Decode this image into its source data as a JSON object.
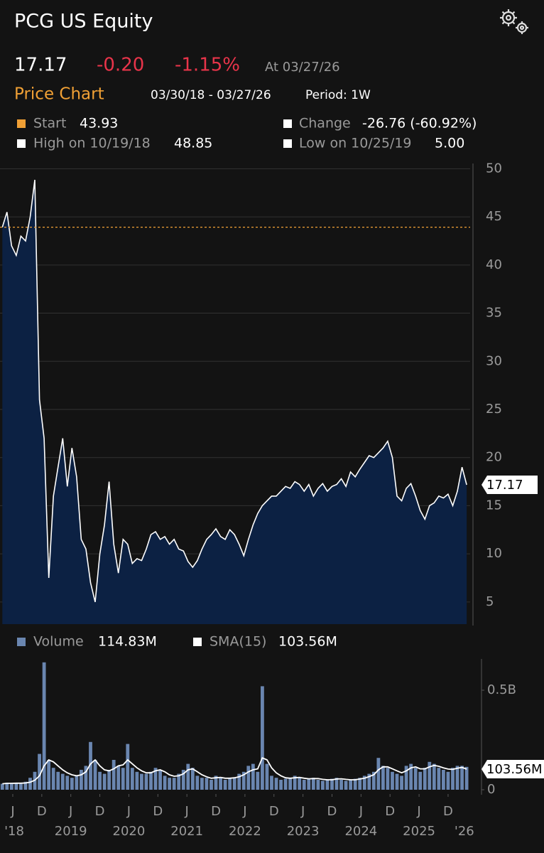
{
  "header": {
    "title": "PCG US Equity",
    "last": "17.17",
    "change": "-0.20",
    "change_pct": "-1.15%",
    "as_of": "At 03/27/26",
    "section": "Price Chart",
    "range": "03/30/18 - 03/27/26",
    "period": "Period: 1W"
  },
  "stats": {
    "start_label": "Start",
    "start_value": 43.93,
    "change_label": "Change",
    "change_value": "-26.76 (-60.92%)",
    "high_label": "High on 10/19/18",
    "high_value": "48.85",
    "low_label": "Low on 10/25/19",
    "low_value": "5.00"
  },
  "chart_data": [
    {
      "type": "area",
      "color": "#ffffff",
      "fill": "#0c2143",
      "start_color": "#f0a035",
      "x": [
        2018.24,
        2018.32,
        2018.4,
        2018.48,
        2018.56,
        2018.64,
        2018.72,
        2018.8,
        2018.88,
        2018.96,
        2019.04,
        2019.12,
        2019.2,
        2019.28,
        2019.36,
        2019.44,
        2019.52,
        2019.6,
        2019.68,
        2019.76,
        2019.84,
        2019.92,
        2020.0,
        2020.08,
        2020.16,
        2020.24,
        2020.32,
        2020.4,
        2020.48,
        2020.56,
        2020.64,
        2020.72,
        2020.8,
        2020.88,
        2020.96,
        2021.04,
        2021.12,
        2021.2,
        2021.28,
        2021.36,
        2021.44,
        2021.52,
        2021.6,
        2021.68,
        2021.76,
        2021.84,
        2021.92,
        2022.0,
        2022.08,
        2022.16,
        2022.24,
        2022.32,
        2022.4,
        2022.48,
        2022.56,
        2022.64,
        2022.72,
        2022.8,
        2022.88,
        2022.96,
        2023.04,
        2023.12,
        2023.2,
        2023.28,
        2023.36,
        2023.44,
        2023.52,
        2023.6,
        2023.68,
        2023.76,
        2023.84,
        2023.92,
        2024.0,
        2024.08,
        2024.16,
        2024.24,
        2024.32,
        2024.4,
        2024.48,
        2024.56,
        2024.64,
        2024.72,
        2024.8,
        2024.88,
        2024.96,
        2025.04,
        2025.12,
        2025.2,
        2025.28,
        2025.36,
        2025.44,
        2025.52,
        2025.6,
        2025.68,
        2025.76,
        2025.84,
        2025.92,
        2026.0,
        2026.08,
        2026.16,
        2026.24
      ],
      "values": [
        43.93,
        45.5,
        42,
        41,
        43,
        42.5,
        45,
        48.85,
        26,
        22,
        7.5,
        16,
        19,
        22,
        17,
        21,
        18,
        11.5,
        10.5,
        7,
        5.0,
        10,
        13,
        17.5,
        11,
        8,
        11.5,
        11,
        9,
        9.5,
        9.3,
        10.5,
        12,
        12.3,
        11.5,
        11.8,
        11,
        11.5,
        10.5,
        10.3,
        9.2,
        8.6,
        9.3,
        10.5,
        11.5,
        12,
        12.6,
        11.8,
        11.5,
        12.5,
        12,
        11,
        9.8,
        11.5,
        13,
        14.2,
        15,
        15.5,
        16,
        16,
        16.5,
        17,
        16.8,
        17.5,
        17.2,
        16.5,
        17.2,
        16,
        16.8,
        17.3,
        16.5,
        17,
        17.2,
        17.8,
        17,
        18.5,
        18,
        18.8,
        19.5,
        20.2,
        20,
        20.5,
        21,
        21.7,
        20,
        16,
        15.5,
        16.8,
        17.3,
        16,
        14.5,
        13.6,
        15,
        15.3,
        16,
        15.8,
        16.2,
        15,
        16.5,
        19,
        17.17
      ],
      "xlim": [
        2018.2,
        2026.3
      ],
      "ylim": [
        2.7,
        50.4
      ],
      "yticks": [
        5,
        10,
        15,
        20,
        25,
        30,
        35,
        40,
        45,
        50
      ],
      "grid": true
    },
    {
      "type": "bar",
      "legend_values": [
        "114.83M",
        "103.56M"
      ],
      "x": [
        2018.24,
        2018.32,
        2018.4,
        2018.48,
        2018.56,
        2018.64,
        2018.72,
        2018.8,
        2018.88,
        2018.96,
        2019.04,
        2019.12,
        2019.2,
        2019.28,
        2019.36,
        2019.44,
        2019.52,
        2019.6,
        2019.68,
        2019.76,
        2019.84,
        2019.92,
        2020.0,
        2020.08,
        2020.16,
        2020.24,
        2020.32,
        2020.4,
        2020.48,
        2020.56,
        2020.64,
        2020.72,
        2020.8,
        2020.88,
        2020.96,
        2021.04,
        2021.12,
        2021.2,
        2021.28,
        2021.36,
        2021.44,
        2021.52,
        2021.6,
        2021.68,
        2021.76,
        2021.84,
        2021.92,
        2022.0,
        2022.08,
        2022.16,
        2022.24,
        2022.32,
        2022.4,
        2022.48,
        2022.56,
        2022.64,
        2022.72,
        2022.8,
        2022.88,
        2022.96,
        2023.04,
        2023.12,
        2023.2,
        2023.28,
        2023.36,
        2023.44,
        2023.52,
        2023.6,
        2023.68,
        2023.76,
        2023.84,
        2023.92,
        2024.0,
        2024.08,
        2024.16,
        2024.24,
        2024.32,
        2024.4,
        2024.48,
        2024.56,
        2024.64,
        2024.72,
        2024.8,
        2024.88,
        2024.96,
        2025.04,
        2025.12,
        2025.2,
        2025.28,
        2025.36,
        2025.44,
        2025.52,
        2025.6,
        2025.68,
        2025.76,
        2025.84,
        2025.92,
        2026.0,
        2026.08,
        2026.16,
        2026.24
      ],
      "series": [
        {
          "name": "Volume",
          "color": "#6a86b0",
          "values": [
            30,
            35,
            30,
            35,
            30,
            40,
            60,
            90,
            180,
            640,
            150,
            110,
            90,
            80,
            70,
            60,
            70,
            100,
            120,
            240,
            150,
            90,
            80,
            100,
            150,
            120,
            110,
            230,
            110,
            90,
            80,
            80,
            90,
            110,
            100,
            70,
            60,
            60,
            80,
            100,
            130,
            110,
            70,
            60,
            60,
            50,
            70,
            60,
            50,
            60,
            60,
            80,
            90,
            120,
            130,
            90,
            520,
            130,
            70,
            60,
            50,
            55,
            60,
            70,
            60,
            50,
            55,
            60,
            50,
            45,
            50,
            55,
            60,
            50,
            45,
            50,
            55,
            60,
            70,
            80,
            90,
            160,
            120,
            110,
            90,
            80,
            70,
            120,
            130,
            110,
            90,
            110,
            140,
            130,
            110,
            100,
            90,
            110,
            120,
            120,
            114.83
          ]
        },
        {
          "name": "SMA(15)",
          "color": "#ffffff",
          "type": "line",
          "values": [
            30,
            32,
            32,
            33,
            33,
            34,
            38,
            48,
            70,
            120,
            150,
            140,
            120,
            100,
            85,
            75,
            70,
            75,
            90,
            130,
            150,
            120,
            100,
            95,
            105,
            120,
            125,
            150,
            130,
            110,
            95,
            85,
            85,
            95,
            100,
            90,
            75,
            68,
            70,
            80,
            100,
            105,
            90,
            75,
            65,
            58,
            60,
            62,
            58,
            58,
            60,
            65,
            75,
            90,
            100,
            105,
            160,
            150,
            110,
            85,
            70,
            60,
            58,
            60,
            62,
            58,
            55,
            56,
            56,
            52,
            50,
            50,
            54,
            55,
            52,
            50,
            50,
            54,
            58,
            66,
            75,
            100,
            115,
            115,
            105,
            95,
            85,
            95,
            110,
            115,
            105,
            105,
            115,
            122,
            118,
            110,
            104,
            102,
            108,
            112,
            103.56
          ]
        }
      ],
      "xlim": [
        2018.2,
        2026.3
      ],
      "ylim": [
        0,
        650
      ],
      "yticks": [
        0,
        {
          "value": 500,
          "label": "0.5B"
        }
      ],
      "xticks": [
        {
          "value": 2018.42,
          "label": "J"
        },
        {
          "value": 2018.92,
          "label": "D"
        },
        {
          "value": 2019.42,
          "label": "J"
        },
        {
          "value": 2019.92,
          "label": "D"
        },
        {
          "value": 2020.42,
          "label": "J"
        },
        {
          "value": 2020.92,
          "label": "D"
        },
        {
          "value": 2021.42,
          "label": "J"
        },
        {
          "value": 2021.92,
          "label": "D"
        },
        {
          "value": 2022.42,
          "label": "J"
        },
        {
          "value": 2022.92,
          "label": "D"
        },
        {
          "value": 2023.42,
          "label": "J"
        },
        {
          "value": 2023.92,
          "label": "D"
        },
        {
          "value": 2024.42,
          "label": "J"
        },
        {
          "value": 2024.92,
          "label": "D"
        },
        {
          "value": 2025.42,
          "label": "J"
        },
        {
          "value": 2025.92,
          "label": "D"
        }
      ],
      "xticks2": [
        {
          "value": 2018.42,
          "label": "'18"
        },
        {
          "value": 2019.42,
          "label": "2019"
        },
        {
          "value": 2020.42,
          "label": "2020"
        },
        {
          "value": 2021.42,
          "label": "2021"
        },
        {
          "value": 2022.42,
          "label": "2022"
        },
        {
          "value": 2023.42,
          "label": "2023"
        },
        {
          "value": 2024.42,
          "label": "2024"
        },
        {
          "value": 2025.42,
          "label": "2025"
        },
        {
          "value": 2026.2,
          "label": "'26"
        }
      ]
    }
  ]
}
